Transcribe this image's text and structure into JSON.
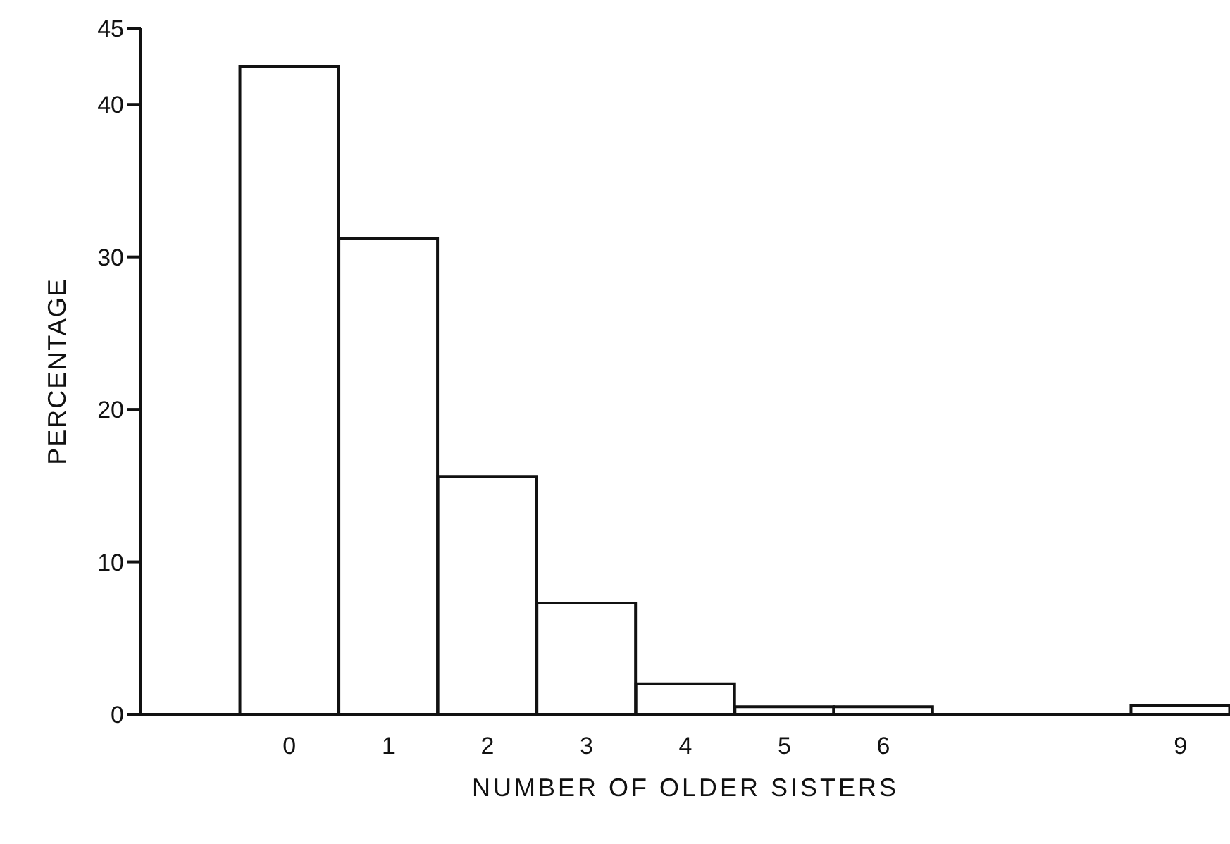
{
  "chart_data": {
    "type": "bar",
    "xlabel": "NUMBER OF OLDER SISTERS",
    "ylabel": "PERCENTAGE",
    "categories": [
      null,
      "0",
      "1",
      "2",
      "3",
      "4",
      "5",
      "6",
      null,
      null,
      "9"
    ],
    "values": [
      null,
      42.5,
      31.2,
      15.6,
      7.3,
      2.0,
      0.5,
      0.5,
      null,
      null,
      0.6
    ],
    "color": "#ffffff",
    "ylim": [
      0,
      45
    ],
    "yticks": [
      0,
      10,
      20,
      30,
      40,
      45
    ],
    "grid": false,
    "legend": false
  }
}
